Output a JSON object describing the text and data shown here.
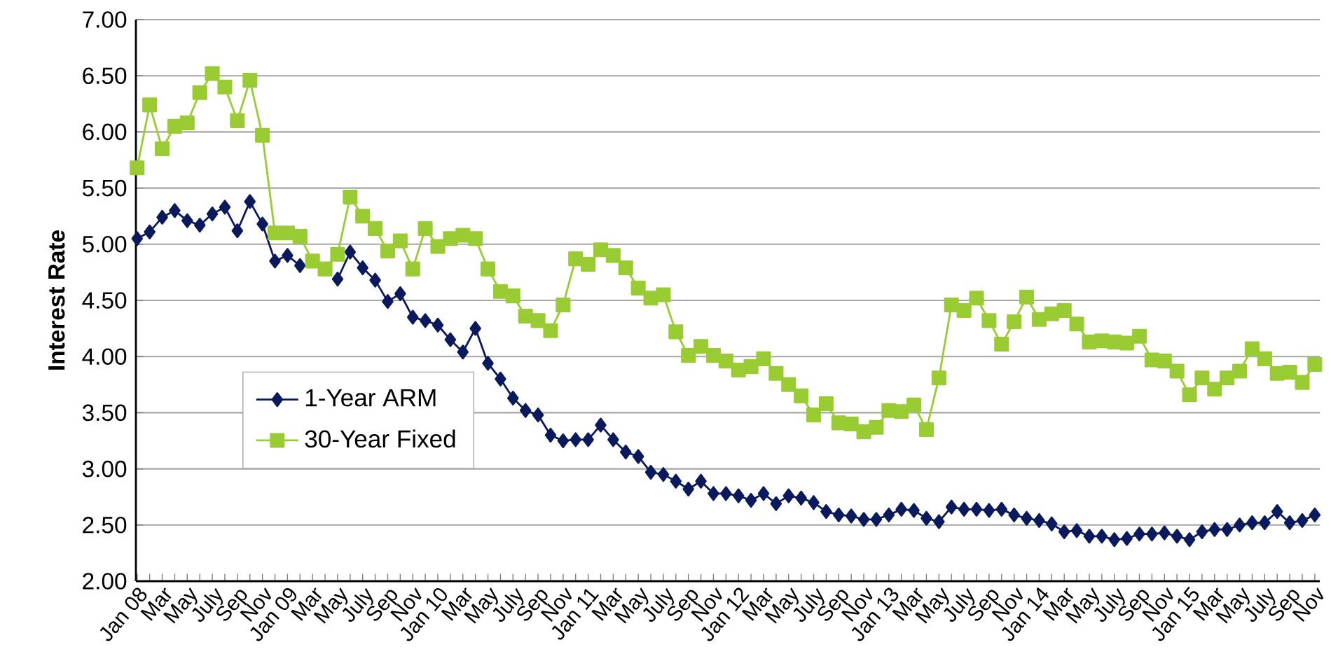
{
  "chart_data": {
    "type": "line",
    "ylabel": "Interest Rate",
    "categories": [
      "Jan 08",
      null,
      "Mar",
      null,
      "May",
      null,
      "July",
      null,
      "Sep",
      null,
      "Nov",
      null,
      "Jan 09",
      null,
      "Mar",
      null,
      "May",
      null,
      "July",
      null,
      "Sep",
      null,
      "Nov",
      null,
      "Jan 10",
      null,
      "Mar",
      null,
      "May",
      null,
      "July",
      null,
      "Sep",
      null,
      "Nov",
      null,
      "Jan 11",
      null,
      "Mar",
      null,
      "May",
      null,
      "July",
      null,
      "Sep",
      null,
      "Nov",
      null,
      "Jan 12",
      null,
      "Mar",
      null,
      "May",
      null,
      "July",
      null,
      "Sep",
      null,
      "Nov",
      null,
      "Jan 13",
      null,
      "Mar",
      null,
      "May",
      null,
      "July",
      null,
      "Sep",
      null,
      "Nov",
      null,
      "Jan 14",
      null,
      "Mar",
      null,
      "May",
      null,
      "July",
      null,
      "Sep",
      null,
      "Nov",
      null,
      "Jan 15",
      null,
      "Mar",
      null,
      "May",
      null,
      "July",
      null,
      "Sep",
      null,
      "Nov"
    ],
    "series": [
      {
        "name": "1-Year ARM",
        "color": "#0a1a5c",
        "marker": "diamond",
        "values": [
          5.05,
          5.11,
          5.24,
          5.3,
          5.21,
          5.17,
          5.27,
          5.33,
          5.12,
          5.38,
          5.18,
          4.85,
          4.9,
          4.81,
          null,
          null,
          4.69,
          4.93,
          4.79,
          4.68,
          4.49,
          4.56,
          4.35,
          4.32,
          4.28,
          4.15,
          4.04,
          4.25,
          3.94,
          3.8,
          3.63,
          3.52,
          3.48,
          3.3,
          3.25,
          3.26,
          3.26,
          3.39,
          3.26,
          3.15,
          3.11,
          2.97,
          2.95,
          2.89,
          2.82,
          2.89,
          2.78,
          2.78,
          2.76,
          2.72,
          2.78,
          2.69,
          2.76,
          2.74,
          2.7,
          2.62,
          2.59,
          2.58,
          2.55,
          2.55,
          2.59,
          2.64,
          2.63,
          2.56,
          2.53,
          2.66,
          2.64,
          2.64,
          2.63,
          2.64,
          2.59,
          2.56,
          2.54,
          2.51,
          2.44,
          2.45,
          2.4,
          2.4,
          2.37,
          2.38,
          2.42,
          2.42,
          2.43,
          2.4,
          2.37,
          2.44,
          2.46,
          2.46,
          2.5,
          2.52,
          2.52,
          2.62,
          2.52,
          2.54,
          2.59
        ]
      },
      {
        "name": "30-Year Fixed",
        "color": "#99cc33",
        "marker": "square",
        "values": [
          5.68,
          6.24,
          5.85,
          6.05,
          6.08,
          6.35,
          6.52,
          6.4,
          6.1,
          6.46,
          5.97,
          5.1,
          5.1,
          5.07,
          4.85,
          4.78,
          4.91,
          5.42,
          5.25,
          5.14,
          4.94,
          5.03,
          4.78,
          5.14,
          4.98,
          5.05,
          5.08,
          5.05,
          4.78,
          4.58,
          4.54,
          4.36,
          4.32,
          4.23,
          4.46,
          4.87,
          4.82,
          4.95,
          4.9,
          4.79,
          4.61,
          4.52,
          4.55,
          4.22,
          4.01,
          4.09,
          4.01,
          3.96,
          3.88,
          3.91,
          3.98,
          3.85,
          3.75,
          3.65,
          3.48,
          3.58,
          3.41,
          3.4,
          3.33,
          3.37,
          3.52,
          3.51,
          3.57,
          3.35,
          3.81,
          4.46,
          4.41,
          4.52,
          4.32,
          4.11,
          4.31,
          4.53,
          4.33,
          4.38,
          4.41,
          4.29,
          4.13,
          4.14,
          4.13,
          4.12,
          4.18,
          3.97,
          3.96,
          3.87,
          3.66,
          3.81,
          3.71,
          3.81,
          3.87,
          4.07,
          3.98,
          3.85,
          3.86,
          3.77,
          3.93
        ]
      }
    ],
    "ylim": [
      2,
      7
    ],
    "yticks": [
      {
        "value": 2,
        "label": "2.00"
      },
      {
        "value": 2.5,
        "label": "2.50"
      },
      {
        "value": 3,
        "label": "3.00"
      },
      {
        "value": 3.5,
        "label": "3.50"
      },
      {
        "value": 4,
        "label": "4.00"
      },
      {
        "value": 4.5,
        "label": "4.50"
      },
      {
        "value": 5,
        "label": "5.00"
      },
      {
        "value": 5.5,
        "label": "5.50"
      },
      {
        "value": 6,
        "label": "6.00"
      },
      {
        "value": 6.5,
        "label": "6.50"
      },
      {
        "value": 7,
        "label": "7.00"
      }
    ],
    "grid": "y",
    "legend": "bottom left",
    "line_style": "solid"
  }
}
